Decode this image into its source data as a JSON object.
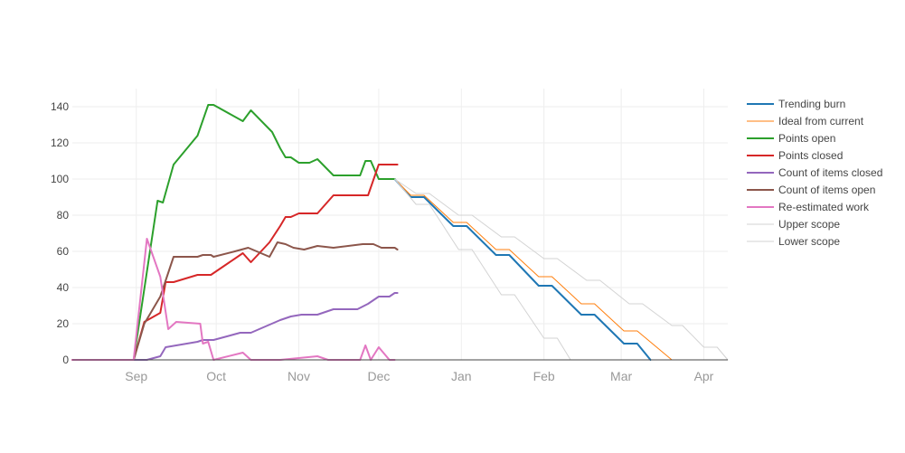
{
  "chart_data": {
    "type": "line",
    "title": "",
    "xlabel": "",
    "ylabel": "",
    "x_axis": "date",
    "xlim": [
      "2023-08-08",
      "2024-04-10"
    ],
    "ylim": [
      0,
      150
    ],
    "y_ticks": [
      0,
      20,
      40,
      60,
      80,
      100,
      120,
      140
    ],
    "x_ticks": [
      {
        "label": "Sep",
        "date": "2023-09-01"
      },
      {
        "label": "Oct",
        "date": "2023-10-01"
      },
      {
        "label": "Nov",
        "date": "2023-11-01"
      },
      {
        "label": "Dec",
        "date": "2023-12-01"
      },
      {
        "label": "Jan",
        "date": "2024-01-01"
      },
      {
        "label": "Feb",
        "date": "2024-02-01"
      },
      {
        "label": "Mar",
        "date": "2024-03-01"
      },
      {
        "label": "Apr",
        "date": "2024-04-01"
      }
    ],
    "grid": true,
    "legend_position": "right",
    "series": [
      {
        "name": "Trending burn",
        "color": "#1f77b4",
        "width": 2,
        "points": [
          [
            "2023-12-07",
            100
          ],
          [
            "2023-12-13",
            90
          ],
          [
            "2023-12-18",
            90
          ],
          [
            "2023-12-29",
            74
          ],
          [
            "2024-01-03",
            74
          ],
          [
            "2024-01-14",
            58
          ],
          [
            "2024-01-19",
            58
          ],
          [
            "2024-01-30",
            41
          ],
          [
            "2024-02-04",
            41
          ],
          [
            "2024-02-15",
            25
          ],
          [
            "2024-02-20",
            25
          ],
          [
            "2024-03-02",
            9
          ],
          [
            "2024-03-07",
            9
          ],
          [
            "2024-03-12",
            0
          ]
        ]
      },
      {
        "name": "Ideal from current",
        "color": "#ff7f0e",
        "width": 1,
        "points": [
          [
            "2023-12-07",
            100
          ],
          [
            "2023-12-13",
            91
          ],
          [
            "2023-12-18",
            91
          ],
          [
            "2023-12-29",
            76
          ],
          [
            "2024-01-03",
            76
          ],
          [
            "2024-01-14",
            61
          ],
          [
            "2024-01-19",
            61
          ],
          [
            "2024-01-30",
            46
          ],
          [
            "2024-02-04",
            46
          ],
          [
            "2024-02-15",
            31
          ],
          [
            "2024-02-20",
            31
          ],
          [
            "2024-03-02",
            16
          ],
          [
            "2024-03-07",
            16
          ],
          [
            "2024-03-20",
            0
          ]
        ]
      },
      {
        "name": "Points open",
        "color": "#2ca02c",
        "width": 2,
        "points": [
          [
            "2023-08-08",
            0
          ],
          [
            "2023-08-31",
            0
          ],
          [
            "2023-09-09",
            88
          ],
          [
            "2023-09-11",
            87
          ],
          [
            "2023-09-15",
            108
          ],
          [
            "2023-09-24",
            124
          ],
          [
            "2023-09-28",
            141
          ],
          [
            "2023-09-30",
            141
          ],
          [
            "2023-10-11",
            132
          ],
          [
            "2023-10-14",
            138
          ],
          [
            "2023-10-22",
            126
          ],
          [
            "2023-10-25",
            117
          ],
          [
            "2023-10-27",
            112
          ],
          [
            "2023-10-29",
            112
          ],
          [
            "2023-11-01",
            109
          ],
          [
            "2023-11-05",
            109
          ],
          [
            "2023-11-08",
            111
          ],
          [
            "2023-11-14",
            102
          ],
          [
            "2023-11-24",
            102
          ],
          [
            "2023-11-26",
            110
          ],
          [
            "2023-11-28",
            110
          ],
          [
            "2023-12-01",
            100
          ],
          [
            "2023-12-07",
            100
          ]
        ]
      },
      {
        "name": "Points closed",
        "color": "#d62728",
        "width": 2,
        "points": [
          [
            "2023-08-08",
            0
          ],
          [
            "2023-08-31",
            0
          ],
          [
            "2023-09-04",
            21
          ],
          [
            "2023-09-10",
            26
          ],
          [
            "2023-09-12",
            43
          ],
          [
            "2023-09-15",
            43
          ],
          [
            "2023-09-24",
            47
          ],
          [
            "2023-09-29",
            47
          ],
          [
            "2023-10-11",
            59
          ],
          [
            "2023-10-14",
            54
          ],
          [
            "2023-10-21",
            65
          ],
          [
            "2023-10-25",
            74
          ],
          [
            "2023-10-27",
            79
          ],
          [
            "2023-10-29",
            79
          ],
          [
            "2023-11-01",
            81
          ],
          [
            "2023-11-08",
            81
          ],
          [
            "2023-11-14",
            91
          ],
          [
            "2023-11-27",
            91
          ],
          [
            "2023-12-01",
            108
          ],
          [
            "2023-12-08",
            108
          ]
        ]
      },
      {
        "name": "Count of items closed",
        "color": "#9467bd",
        "width": 2,
        "points": [
          [
            "2023-08-08",
            0
          ],
          [
            "2023-09-05",
            0
          ],
          [
            "2023-09-10",
            2
          ],
          [
            "2023-09-12",
            7
          ],
          [
            "2023-09-24",
            10
          ],
          [
            "2023-09-26",
            11
          ],
          [
            "2023-09-30",
            11
          ],
          [
            "2023-10-10",
            15
          ],
          [
            "2023-10-14",
            15
          ],
          [
            "2023-10-25",
            22
          ],
          [
            "2023-10-29",
            24
          ],
          [
            "2023-11-02",
            25
          ],
          [
            "2023-11-08",
            25
          ],
          [
            "2023-11-14",
            28
          ],
          [
            "2023-11-21",
            28
          ],
          [
            "2023-11-23",
            28
          ],
          [
            "2023-11-27",
            31
          ],
          [
            "2023-12-01",
            35
          ],
          [
            "2023-12-05",
            35
          ],
          [
            "2023-12-07",
            37
          ],
          [
            "2023-12-08",
            37
          ]
        ]
      },
      {
        "name": "Count of items open",
        "color": "#8c564b",
        "width": 2,
        "points": [
          [
            "2023-08-08",
            0
          ],
          [
            "2023-08-31",
            0
          ],
          [
            "2023-09-04",
            20
          ],
          [
            "2023-09-10",
            35
          ],
          [
            "2023-09-15",
            57
          ],
          [
            "2023-09-24",
            57
          ],
          [
            "2023-09-26",
            58
          ],
          [
            "2023-09-29",
            58
          ],
          [
            "2023-09-30",
            57
          ],
          [
            "2023-10-08",
            60
          ],
          [
            "2023-10-13",
            62
          ],
          [
            "2023-10-21",
            57
          ],
          [
            "2023-10-24",
            65
          ],
          [
            "2023-10-27",
            64
          ],
          [
            "2023-10-30",
            62
          ],
          [
            "2023-11-03",
            61
          ],
          [
            "2023-11-08",
            63
          ],
          [
            "2023-11-14",
            62
          ],
          [
            "2023-11-25",
            64
          ],
          [
            "2023-11-29",
            64
          ],
          [
            "2023-12-02",
            62
          ],
          [
            "2023-12-07",
            62
          ],
          [
            "2023-12-08",
            61
          ]
        ]
      },
      {
        "name": "Re-estimated work",
        "color": "#e377c2",
        "width": 2,
        "points": [
          [
            "2023-08-08",
            0
          ],
          [
            "2023-08-31",
            0
          ],
          [
            "2023-09-05",
            67
          ],
          [
            "2023-09-10",
            46
          ],
          [
            "2023-09-13",
            17
          ],
          [
            "2023-09-16",
            21
          ],
          [
            "2023-09-25",
            20
          ],
          [
            "2023-09-26",
            9
          ],
          [
            "2023-09-28",
            10
          ],
          [
            "2023-09-30",
            0
          ],
          [
            "2023-10-11",
            4
          ],
          [
            "2023-10-14",
            0
          ],
          [
            "2023-10-22",
            0
          ],
          [
            "2023-10-25",
            0
          ],
          [
            "2023-11-08",
            2
          ],
          [
            "2023-11-12",
            0
          ],
          [
            "2023-11-24",
            0
          ],
          [
            "2023-11-26",
            8
          ],
          [
            "2023-11-28",
            0
          ],
          [
            "2023-12-01",
            7
          ],
          [
            "2023-12-05",
            0
          ],
          [
            "2023-12-07",
            0
          ]
        ]
      },
      {
        "name": "Upper scope",
        "color": "#d3d3d3",
        "width": 1,
        "points": [
          [
            "2023-12-07",
            100
          ],
          [
            "2023-12-15",
            92
          ],
          [
            "2023-12-20",
            92
          ],
          [
            "2023-12-31",
            80
          ],
          [
            "2024-01-05",
            80
          ],
          [
            "2024-01-16",
            68
          ],
          [
            "2024-01-21",
            68
          ],
          [
            "2024-02-01",
            56
          ],
          [
            "2024-02-06",
            56
          ],
          [
            "2024-02-17",
            44
          ],
          [
            "2024-02-22",
            44
          ],
          [
            "2024-03-04",
            31
          ],
          [
            "2024-03-09",
            31
          ],
          [
            "2024-03-20",
            19
          ],
          [
            "2024-03-24",
            19
          ],
          [
            "2024-04-01",
            7
          ],
          [
            "2024-04-06",
            7
          ],
          [
            "2024-04-10",
            0
          ]
        ]
      },
      {
        "name": "Lower scope",
        "color": "#d3d3d3",
        "width": 1,
        "points": [
          [
            "2023-12-07",
            100
          ],
          [
            "2023-12-15",
            86
          ],
          [
            "2023-12-20",
            86
          ],
          [
            "2023-12-31",
            61
          ],
          [
            "2024-01-05",
            61
          ],
          [
            "2024-01-16",
            36
          ],
          [
            "2024-01-21",
            36
          ],
          [
            "2024-02-01",
            12
          ],
          [
            "2024-02-06",
            12
          ],
          [
            "2024-02-11",
            0
          ]
        ]
      }
    ]
  }
}
